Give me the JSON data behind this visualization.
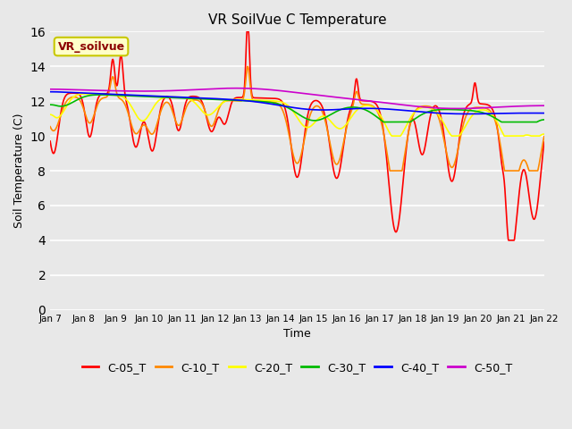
{
  "title": "VR SoilVue C Temperature",
  "xlabel": "Time",
  "ylabel": "Soil Temperature (C)",
  "ylim": [
    0,
    16
  ],
  "yticks": [
    0,
    2,
    4,
    6,
    8,
    10,
    12,
    14,
    16
  ],
  "bg_color": "#e8e8e8",
  "annotation_text": "VR_soilvue",
  "annotation_text_color": "#8b0000",
  "annotation_bg_color": "#ffffc8",
  "annotation_edge_color": "#c8c800",
  "legend_entries": [
    "C-05_T",
    "C-10_T",
    "C-20_T",
    "C-30_T",
    "C-40_T",
    "C-50_T"
  ],
  "line_colors": [
    "#ff0000",
    "#ff8800",
    "#ffff00",
    "#00bb00",
    "#0000ff",
    "#cc00cc"
  ],
  "xtick_labels": [
    "Jan 7",
    "Jan 8",
    "Jan 9",
    "Jan 10",
    "Jan 11",
    "Jan 12",
    "Jan 13",
    "Jan 14",
    "Jan 15",
    "Jan 16",
    "Jan 17",
    "Jan 18",
    "Jan 19",
    "Jan 20",
    "Jan 21",
    "Jan 22"
  ]
}
